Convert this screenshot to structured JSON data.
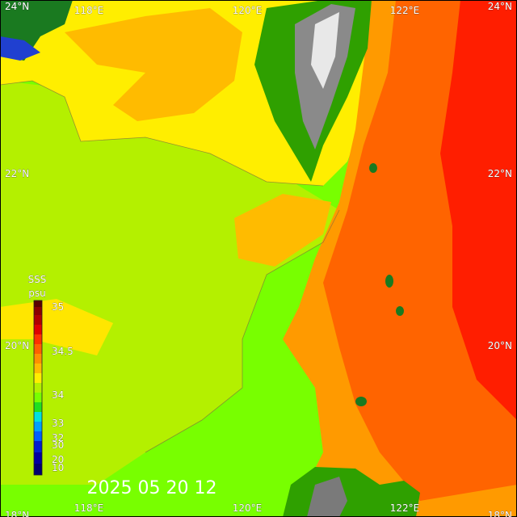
{
  "map": {
    "lat_labels_left": [
      "24°N",
      "22°N",
      "20°N",
      "18°N"
    ],
    "lat_labels_right": [
      "24°N",
      "22°N",
      "20°N",
      "18°N"
    ],
    "lon_labels_top": [
      "118°E",
      "120°E",
      "122°E"
    ],
    "lon_labels_bottom": [
      "118°E",
      "120°E",
      "122°E"
    ],
    "legend": {
      "title": "SSS",
      "unit": "psu",
      "labels": [
        "35",
        "34.5",
        "34",
        "33",
        "32",
        "30",
        "20",
        "10"
      ]
    },
    "timestamp": "2025 05 20 12"
  }
}
